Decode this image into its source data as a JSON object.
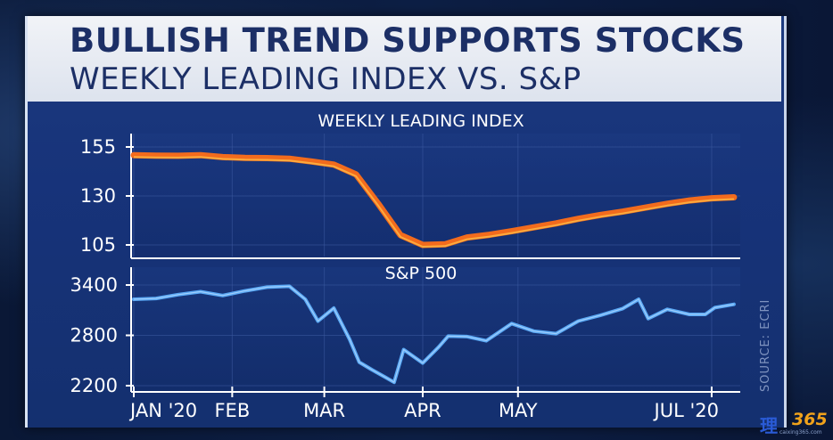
{
  "header": {
    "headline": "BULLISH TREND SUPPORTS STOCKS",
    "subhead": "WEEKLY LEADING INDEX VS. S&P"
  },
  "source": "SOURCE: ECRI",
  "watermark": {
    "mark": "理",
    "number": "365",
    "url": "caixing365.com"
  },
  "colors": {
    "wli_line": "#f26b1d",
    "wli_highlight": "#ffc04a",
    "sp_line": "#5aa9f5",
    "sp_highlight": "#cfe6ff",
    "panel_bg": "#17337a"
  },
  "chart_data": [
    {
      "type": "line",
      "title": "WEEKLY LEADING INDEX",
      "x_range": [
        "2020-01-01",
        "2020-07-10"
      ],
      "ylim": [
        100,
        160
      ],
      "yticks": [
        105,
        130,
        155
      ],
      "series": [
        {
          "values": [
            [
              "2020-01-01",
              150.8
            ],
            [
              "2020-01-08",
              150.6
            ],
            [
              "2020-01-15",
              150.5
            ],
            [
              "2020-01-22",
              150.8
            ],
            [
              "2020-01-29",
              149.8
            ],
            [
              "2020-02-05",
              149.4
            ],
            [
              "2020-02-12",
              149.3
            ],
            [
              "2020-02-19",
              149.0
            ],
            [
              "2020-02-26",
              147.6
            ],
            [
              "2020-03-04",
              146.0
            ],
            [
              "2020-03-11",
              141.0
            ],
            [
              "2020-03-18",
              126.0
            ],
            [
              "2020-03-25",
              110.0
            ],
            [
              "2020-04-01",
              105.0
            ],
            [
              "2020-04-08",
              105.3
            ],
            [
              "2020-04-15",
              108.8
            ],
            [
              "2020-04-22",
              110.2
            ],
            [
              "2020-04-29",
              112.0
            ],
            [
              "2020-05-06",
              114.0
            ],
            [
              "2020-05-13",
              116.0
            ],
            [
              "2020-05-20",
              118.3
            ],
            [
              "2020-05-27",
              120.3
            ],
            [
              "2020-06-03",
              122.0
            ],
            [
              "2020-06-10",
              124.0
            ],
            [
              "2020-06-17",
              126.0
            ],
            [
              "2020-06-24",
              127.7
            ],
            [
              "2020-07-01",
              128.8
            ],
            [
              "2020-07-08",
              129.3
            ]
          ]
        }
      ]
    },
    {
      "type": "line",
      "title": "S&P 500",
      "x_range": [
        "2020-01-01",
        "2020-07-10"
      ],
      "ylim": [
        2150,
        3500
      ],
      "yticks": [
        2200,
        2800,
        3400
      ],
      "xticks": [
        "JAN '20",
        "FEB",
        "MAR",
        "APR",
        "MAY",
        "JUL '20"
      ],
      "series": [
        {
          "values": [
            [
              "2020-01-01",
              3230
            ],
            [
              "2020-01-08",
              3240
            ],
            [
              "2020-01-15",
              3285
            ],
            [
              "2020-01-22",
              3320
            ],
            [
              "2020-01-29",
              3275
            ],
            [
              "2020-02-05",
              3330
            ],
            [
              "2020-02-12",
              3375
            ],
            [
              "2020-02-19",
              3385
            ],
            [
              "2020-02-24",
              3230
            ],
            [
              "2020-02-28",
              2970
            ],
            [
              "2020-03-04",
              3125
            ],
            [
              "2020-03-09",
              2750
            ],
            [
              "2020-03-12",
              2480
            ],
            [
              "2020-03-16",
              2390
            ],
            [
              "2020-03-20",
              2305
            ],
            [
              "2020-03-23",
              2240
            ],
            [
              "2020-03-26",
              2630
            ],
            [
              "2020-04-01",
              2470
            ],
            [
              "2020-04-06",
              2660
            ],
            [
              "2020-04-09",
              2790
            ],
            [
              "2020-04-15",
              2785
            ],
            [
              "2020-04-21",
              2735
            ],
            [
              "2020-04-29",
              2940
            ],
            [
              "2020-05-06",
              2850
            ],
            [
              "2020-05-13",
              2820
            ],
            [
              "2020-05-20",
              2970
            ],
            [
              "2020-05-27",
              3040
            ],
            [
              "2020-06-03",
              3120
            ],
            [
              "2020-06-08",
              3230
            ],
            [
              "2020-06-11",
              3000
            ],
            [
              "2020-06-17",
              3110
            ],
            [
              "2020-06-24",
              3050
            ],
            [
              "2020-06-29",
              3050
            ],
            [
              "2020-07-02",
              3130
            ],
            [
              "2020-07-08",
              3170
            ]
          ]
        }
      ]
    }
  ]
}
